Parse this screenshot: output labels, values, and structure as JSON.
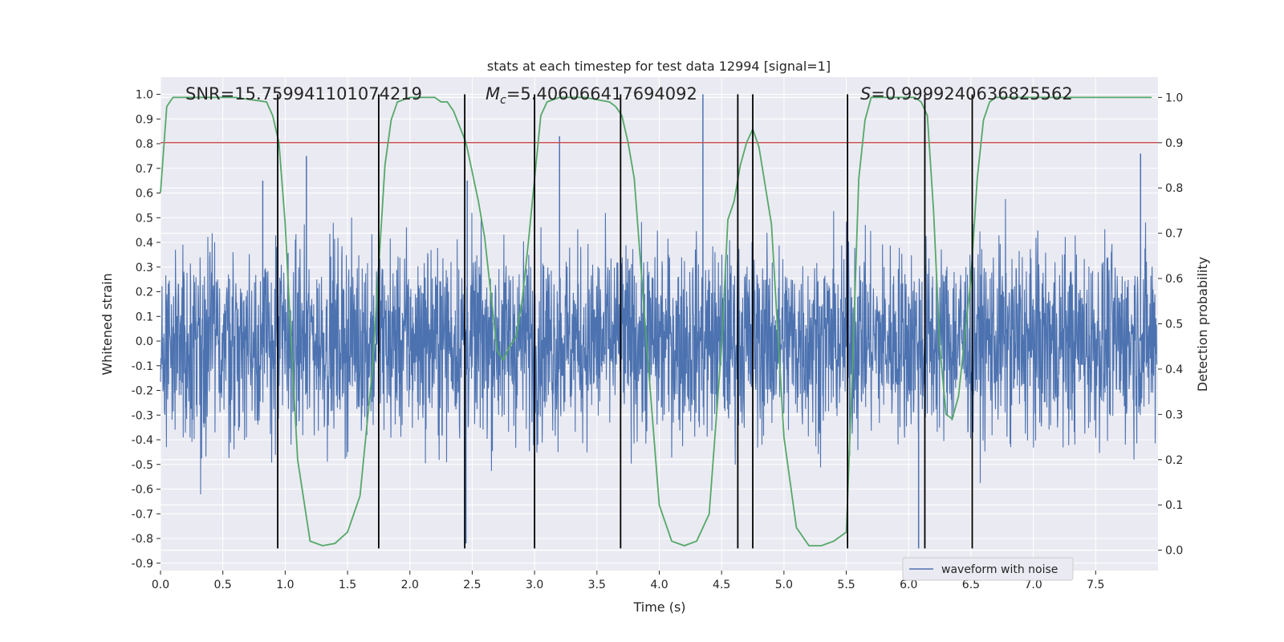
{
  "chart_data": {
    "type": "line",
    "title": "stats at each timestep for test data 12994 [signal=1]",
    "xlabel": "Time (s)",
    "ylabel": "Whitened strain",
    "y2label": "Detection probability",
    "xlim": [
      0,
      8
    ],
    "ylim": [
      -0.93,
      1.07
    ],
    "y2lim": [
      -0.045,
      1.045
    ],
    "xticks": [
      0.0,
      0.5,
      1.0,
      1.5,
      2.0,
      2.5,
      3.0,
      3.5,
      4.0,
      4.5,
      5.0,
      5.5,
      6.0,
      6.5,
      7.0,
      7.5
    ],
    "yticks": [
      -0.9,
      -0.8,
      -0.7,
      -0.6,
      -0.5,
      -0.4,
      -0.3,
      -0.2,
      -0.1,
      0.0,
      0.1,
      0.2,
      0.3,
      0.4,
      0.5,
      0.6,
      0.7,
      0.8,
      0.9,
      1.0
    ],
    "y2ticks": [
      0.0,
      0.1,
      0.2,
      0.3,
      0.4,
      0.5,
      0.6,
      0.7,
      0.8,
      0.9,
      1.0
    ],
    "grid": true,
    "legend": {
      "position": "lower-right",
      "entries": [
        "waveform with noise"
      ]
    },
    "annotations": {
      "snr": "SNR=15.759941101074219",
      "mc_symbol": "M",
      "mc_sub": "c",
      "mc_value": "=5.406066417694092",
      "s_symbol": "S",
      "s_value": "=0.9999240636825562"
    },
    "threshold_y2": 0.9,
    "vertical_lines_x": [
      0.94,
      1.75,
      2.44,
      3.0,
      3.69,
      4.63,
      4.75,
      5.51,
      6.13,
      6.51
    ],
    "vertical_lines_ylim": [
      -0.84,
      1.0
    ],
    "series": [
      {
        "name": "waveform with noise",
        "axis": "left",
        "envelope": {
          "x": [
            0.0,
            1.0,
            2.0,
            3.0,
            4.0,
            5.0,
            6.0,
            7.0,
            7.5,
            7.95
          ],
          "max": [
            0.52,
            0.75,
            0.62,
            0.69,
            0.68,
            0.64,
            0.62,
            0.58,
            0.76,
            0.69
          ],
          "min": [
            -0.64,
            -0.74,
            -0.69,
            -0.69,
            -0.68,
            -0.69,
            -0.84,
            -0.71,
            -0.76,
            -0.61
          ]
        },
        "spikes": [
          [
            2.45,
            -0.82
          ],
          [
            2.46,
            0.65
          ],
          [
            3.2,
            0.83
          ],
          [
            4.35,
            1.0
          ],
          [
            6.08,
            -0.84
          ],
          [
            7.86,
            0.76
          ],
          [
            1.17,
            0.75
          ],
          [
            0.82,
            0.65
          ]
        ]
      },
      {
        "name": "Detection probability",
        "axis": "right",
        "x": [
          0.0,
          0.05,
          0.1,
          0.2,
          0.35,
          0.6,
          0.85,
          0.9,
          0.95,
          1.0,
          1.05,
          1.1,
          1.2,
          1.3,
          1.4,
          1.5,
          1.6,
          1.7,
          1.8,
          1.85,
          1.9,
          2.0,
          2.1,
          2.2,
          2.25,
          2.3,
          2.35,
          2.45,
          2.55,
          2.6,
          2.7,
          2.75,
          2.8,
          2.85,
          2.9,
          2.95,
          3.0,
          3.05,
          3.1,
          3.2,
          3.4,
          3.6,
          3.65,
          3.7,
          3.75,
          3.8,
          3.9,
          4.0,
          4.1,
          4.2,
          4.3,
          4.4,
          4.5,
          4.55,
          4.6,
          4.65,
          4.7,
          4.75,
          4.8,
          4.9,
          5.0,
          5.1,
          5.2,
          5.3,
          5.4,
          5.5,
          5.55,
          5.6,
          5.65,
          5.7,
          5.85,
          6.05,
          6.1,
          6.15,
          6.2,
          6.25,
          6.3,
          6.35,
          6.4,
          6.5,
          6.55,
          6.6,
          6.65,
          6.7,
          6.8,
          7.0,
          7.5,
          7.95
        ],
        "values": [
          0.79,
          0.98,
          1.0,
          1.0,
          1.0,
          1.0,
          0.99,
          0.96,
          0.9,
          0.72,
          0.45,
          0.2,
          0.02,
          0.01,
          0.015,
          0.04,
          0.12,
          0.4,
          0.85,
          0.95,
          0.99,
          1.0,
          1.0,
          1.0,
          0.99,
          0.99,
          0.97,
          0.9,
          0.77,
          0.69,
          0.44,
          0.42,
          0.45,
          0.47,
          0.55,
          0.68,
          0.82,
          0.96,
          0.99,
          1.0,
          1.0,
          0.99,
          0.98,
          0.96,
          0.9,
          0.82,
          0.45,
          0.1,
          0.02,
          0.01,
          0.02,
          0.08,
          0.45,
          0.73,
          0.77,
          0.85,
          0.9,
          0.93,
          0.89,
          0.72,
          0.25,
          0.05,
          0.01,
          0.01,
          0.02,
          0.04,
          0.4,
          0.82,
          0.95,
          1.0,
          1.0,
          1.0,
          0.99,
          0.96,
          0.75,
          0.45,
          0.3,
          0.29,
          0.34,
          0.6,
          0.82,
          0.95,
          0.99,
          1.0,
          1.0,
          1.0,
          1.0,
          1.0
        ]
      }
    ]
  },
  "colors": {
    "plot_bg": "#eaeaf2",
    "grid": "#ffffff",
    "waveform": "#4c72b0",
    "probability": "#55a868",
    "threshold": "#c44e52",
    "vline": "#000000",
    "text": "#262626"
  }
}
